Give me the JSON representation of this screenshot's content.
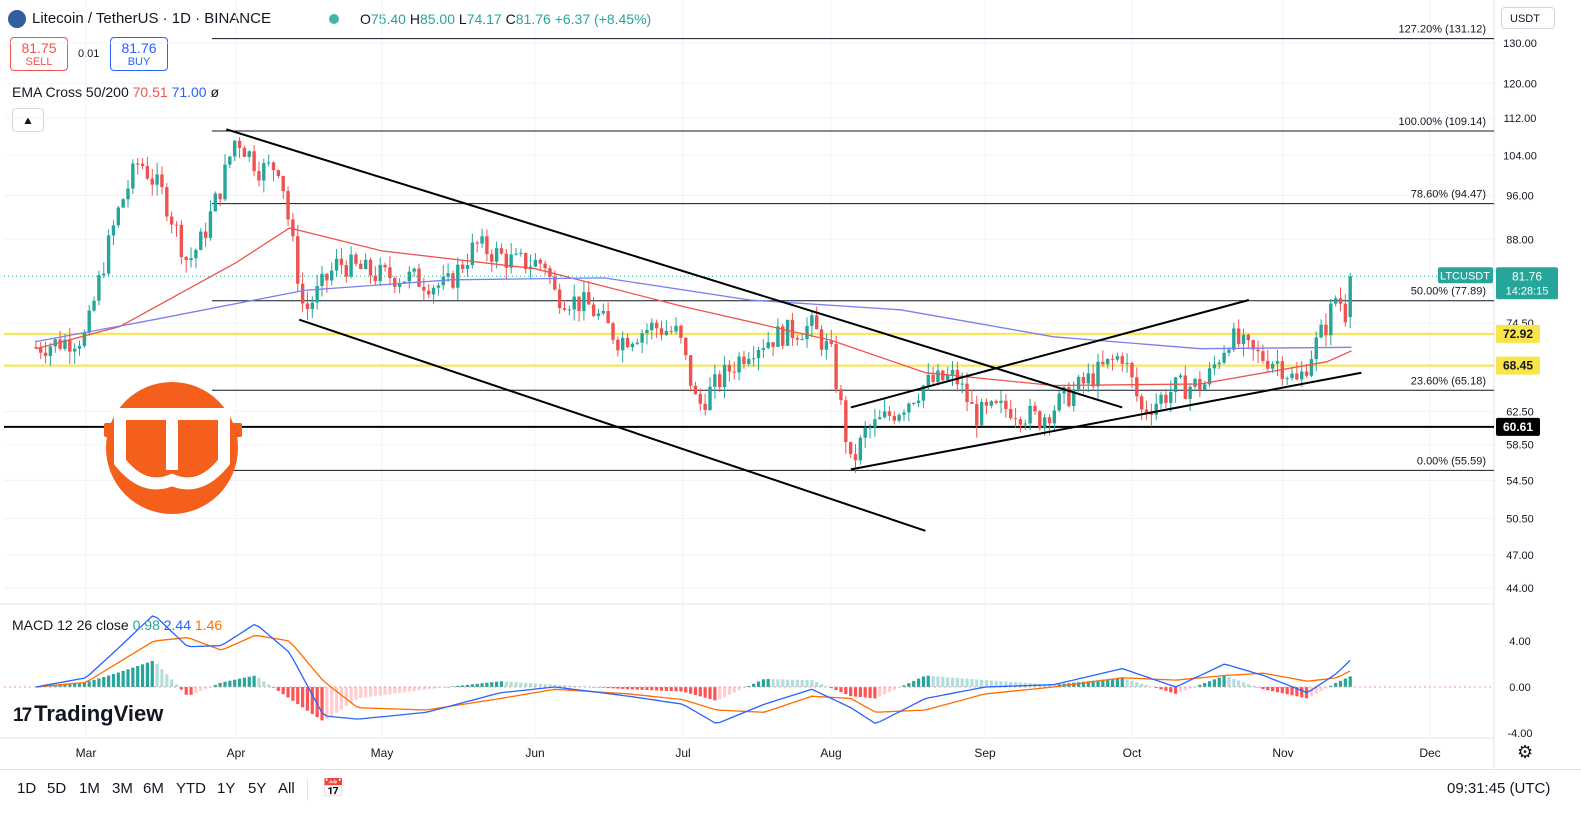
{
  "header": {
    "title": "Litecoin / TetherUS · 1D · BINANCE",
    "ohlc": {
      "o_label": "O",
      "o": "75.40",
      "h_label": "H",
      "h": "85.00",
      "l_label": "L",
      "l": "74.17",
      "c_label": "C",
      "c": "81.76",
      "change": "+6.37 (+8.45%)"
    }
  },
  "trade": {
    "sell_price": "81.75",
    "sell_label": "SELL",
    "spread": "0.01",
    "buy_price": "81.76",
    "buy_label": "BUY"
  },
  "indicators": {
    "ema_name": "EMA Cross 50/200",
    "ema_50": "70.51",
    "ema_200": "71.00",
    "ema_extra": "ø",
    "macd_name": "MACD 12 26 close",
    "macd_hist": "0.98",
    "macd_line": "2.44",
    "macd_signal": "1.46"
  },
  "brand": {
    "name": "TradingView",
    "mark": "17"
  },
  "currency": "USDT",
  "colors": {
    "up": "#26a69a",
    "down": "#ef5350",
    "ema50": "#ef5350",
    "ema200": "#7b7fef",
    "macd": "#2962ff",
    "signal": "#ff6d00",
    "fib": "#131722",
    "hline_yellow": "#f9e547",
    "logo_orange": "#f4601c"
  },
  "chart_data": {
    "type": "candlestick",
    "symbol": "LTCUSDT",
    "last_price": "81.76",
    "countdown": "14:28:15",
    "ylim": [
      42,
      134
    ],
    "y_ticks": [
      "130.00",
      "120.00",
      "112.00",
      "104.00",
      "96.00",
      "88.00",
      "74.50",
      "62.50",
      "58.50",
      "54.50",
      "50.50",
      "47.00",
      "44.00"
    ],
    "x_ticks": [
      "Mar",
      "Apr",
      "May",
      "Jun",
      "Jul",
      "Aug",
      "Sep",
      "Oct",
      "Nov",
      "Dec"
    ],
    "fib_levels": [
      {
        "label": "127.20% (131.12)",
        "price": 131.12
      },
      {
        "label": "100.00% (109.14)",
        "price": 109.14
      },
      {
        "label": "78.60% (94.47)",
        "price": 94.47
      },
      {
        "label": "50.00% (77.89)",
        "price": 77.89
      },
      {
        "label": "23.60% (65.18)",
        "price": 65.18
      },
      {
        "label": "0.00% (55.59)",
        "price": 55.59
      }
    ],
    "price_tags": [
      {
        "label": "72.92",
        "price": 72.92,
        "style": "yellow"
      },
      {
        "label": "68.45",
        "price": 68.45,
        "style": "yellow"
      },
      {
        "label": "60.61",
        "price": 60.61,
        "style": "black"
      }
    ],
    "close_anchors": [
      [
        "Feb 20",
        71.0
      ],
      [
        "Mar 01",
        72.5
      ],
      [
        "Mar 05",
        85.0
      ],
      [
        "Mar 08",
        94.0
      ],
      [
        "Mar 12",
        103.0
      ],
      [
        "Mar 17",
        96.0
      ],
      [
        "Mar 22",
        84.0
      ],
      [
        "Mar 25",
        88.0
      ],
      [
        "Mar 29",
        98.0
      ],
      [
        "Apr 01",
        108.0
      ],
      [
        "Apr 06",
        101.0
      ],
      [
        "Apr 10",
        102.0
      ],
      [
        "Apr 12",
        90.0
      ],
      [
        "Apr 15",
        76.0
      ],
      [
        "Apr 22",
        84.0
      ],
      [
        "Apr 30",
        82.0
      ],
      [
        "May 07",
        81.5
      ],
      [
        "May 14",
        80.0
      ],
      [
        "May 20",
        87.0
      ],
      [
        "May 28",
        84.0
      ],
      [
        "Jun 03",
        84.0
      ],
      [
        "Jun 05",
        79.0
      ],
      [
        "Jun 12",
        77.0
      ],
      [
        "Jun 18",
        72.0
      ],
      [
        "Jun 25",
        74.0
      ],
      [
        "Jun 30",
        73.0
      ],
      [
        "Jul 04",
        63.0
      ],
      [
        "Jul 08",
        66.0
      ],
      [
        "Jul 15",
        71.0
      ],
      [
        "Jul 22",
        73.0
      ],
      [
        "Jul 28",
        74.0
      ],
      [
        "Aug 01",
        70.0
      ],
      [
        "Aug 05",
        56.0
      ],
      [
        "Aug 08",
        60.0
      ],
      [
        "Aug 15",
        63.0
      ],
      [
        "Aug 20",
        66.0
      ],
      [
        "Aug 26",
        67.0
      ],
      [
        "Aug 30",
        62.0
      ],
      [
        "Sep 06",
        63.0
      ],
      [
        "Sep 12",
        61.5
      ],
      [
        "Sep 18",
        64.5
      ],
      [
        "Sep 25",
        68.0
      ],
      [
        "Sep 29",
        70.0
      ],
      [
        "Oct 03",
        62.5
      ],
      [
        "Oct 10",
        65.5
      ],
      [
        "Oct 16",
        66.0
      ],
      [
        "Oct 21",
        72.5
      ],
      [
        "Oct 26",
        70.0
      ],
      [
        "Oct 31",
        69.0
      ],
      [
        "Nov 04",
        66.0
      ],
      [
        "Nov 07",
        70.5
      ],
      [
        "Nov 10",
        74.5
      ],
      [
        "Nov 12",
        79.0
      ],
      [
        "Nov 14",
        75.5
      ],
      [
        "Nov 15",
        81.76
      ]
    ],
    "ema50_anchors": [
      [
        "Feb 20",
        70.8
      ],
      [
        "Mar 08",
        74.0
      ],
      [
        "Apr 01",
        84.0
      ],
      [
        "Apr 12",
        90.0
      ],
      [
        "May 01",
        86.0
      ],
      [
        "Jun 01",
        83.0
      ],
      [
        "Jul 01",
        77.0
      ],
      [
        "Aug 01",
        72.0
      ],
      [
        "Aug 20",
        67.5
      ],
      [
        "Sep 15",
        65.8
      ],
      [
        "Oct 15",
        66.0
      ],
      [
        "Nov 10",
        69.0
      ],
      [
        "Nov 15",
        70.5
      ]
    ],
    "ema200_anchors": [
      [
        "Feb 20",
        71.8
      ],
      [
        "Mar 15",
        75.0
      ],
      [
        "Apr 15",
        79.5
      ],
      [
        "May 15",
        81.2
      ],
      [
        "Jun 15",
        81.5
      ],
      [
        "Jul 15",
        78.0
      ],
      [
        "Aug 15",
        76.5
      ],
      [
        "Sep 15",
        72.5
      ],
      [
        "Oct 15",
        70.8
      ],
      [
        "Nov 15",
        71.0
      ]
    ],
    "trendlines": [
      {
        "from": [
          "Mar 30",
          109.5
        ],
        "to": [
          "Sep 29",
          63.0
        ]
      },
      {
        "from": [
          "Apr 14",
          75.0
        ],
        "to": [
          "Aug 20",
          49.3
        ]
      },
      {
        "from": [
          "Aug 05",
          63.0
        ],
        "to": [
          "Oct 25",
          78.0
        ]
      },
      {
        "from": [
          "Aug 05",
          55.7
        ],
        "to": [
          "Nov 17",
          67.5
        ]
      }
    ],
    "macd_ylim": [
      -4.2,
      7.0
    ],
    "macd_ticks": [
      "4.00",
      "0.00",
      "-4.00"
    ],
    "macd_anchors": [
      [
        "Feb 20",
        0.0,
        0.0
      ],
      [
        "Mar 01",
        0.8,
        0.4
      ],
      [
        "Mar 08",
        3.5,
        2.2
      ],
      [
        "Mar 15",
        6.3,
        4.0
      ],
      [
        "Mar 22",
        3.5,
        4.3
      ],
      [
        "Mar 29",
        3.6,
        3.2
      ],
      [
        "Apr 05",
        5.5,
        4.5
      ],
      [
        "Apr 12",
        3.0,
        4.0
      ],
      [
        "Apr 19",
        -2.5,
        0.5
      ],
      [
        "Apr 26",
        -2.8,
        -1.8
      ],
      [
        "May 10",
        -2.2,
        -2.0
      ],
      [
        "May 25",
        -0.5,
        -1.0
      ],
      [
        "Jun 05",
        0.0,
        -0.2
      ],
      [
        "Jun 20",
        -0.8,
        -0.6
      ],
      [
        "Jul 01",
        -1.5,
        -1.1
      ],
      [
        "Jul 08",
        -3.2,
        -2.0
      ],
      [
        "Jul 18",
        -1.5,
        -2.2
      ],
      [
        "Jul 28",
        -0.2,
        -0.8
      ],
      [
        "Aug 05",
        -1.8,
        -1.0
      ],
      [
        "Aug 10",
        -3.2,
        -2.2
      ],
      [
        "Aug 20",
        -1.0,
        -2.0
      ],
      [
        "Sep 01",
        0.0,
        -0.6
      ],
      [
        "Sep 15",
        0.2,
        0.0
      ],
      [
        "Sep 29",
        1.6,
        0.8
      ],
      [
        "Oct 10",
        0.0,
        0.6
      ],
      [
        "Oct 20",
        2.0,
        1.0
      ],
      [
        "Oct 28",
        1.0,
        1.2
      ],
      [
        "Nov 06",
        -0.5,
        0.5
      ],
      [
        "Nov 12",
        1.2,
        0.8
      ],
      [
        "Nov 15",
        2.44,
        1.46
      ]
    ]
  },
  "bottom_bar": {
    "ranges": [
      "1D",
      "5D",
      "1M",
      "3M",
      "6M",
      "YTD",
      "1Y",
      "5Y",
      "All"
    ],
    "time": "09:31:45 (UTC)"
  }
}
